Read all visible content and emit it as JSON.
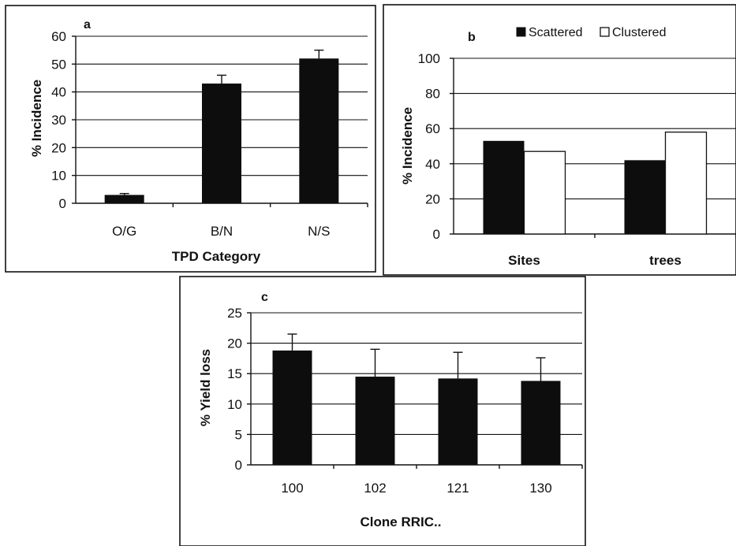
{
  "chart_data": [
    {
      "panel": "a",
      "type": "bar",
      "title": "",
      "xlabel": "TPD Category",
      "ylabel": "% Incidence",
      "ylim": [
        0,
        60
      ],
      "yticks": [
        0,
        10,
        20,
        30,
        40,
        50,
        60
      ],
      "categories": [
        "O/G",
        "B/N",
        "N/S"
      ],
      "values": [
        3,
        43,
        52
      ],
      "errors": [
        0.5,
        3,
        3
      ],
      "grid": true,
      "colors": {
        "bar": "#0d0d0d"
      }
    },
    {
      "panel": "b",
      "type": "bar",
      "title": "",
      "xlabel": "",
      "ylabel": "% Incidence",
      "ylim": [
        0,
        100
      ],
      "yticks": [
        0,
        20,
        40,
        60,
        80,
        100
      ],
      "categories": [
        "Sites",
        "trees"
      ],
      "series": [
        {
          "name": "Scattered",
          "values": [
            53,
            42
          ],
          "color": "#0d0d0d"
        },
        {
          "name": "Clustered",
          "values": [
            47,
            58
          ],
          "color": "#ffffff"
        }
      ],
      "legend": "top",
      "grid": true
    },
    {
      "panel": "c",
      "type": "bar",
      "title": "",
      "xlabel": "Clone RRIC..",
      "ylabel": "% Yield loss",
      "ylim": [
        0,
        25
      ],
      "yticks": [
        0,
        5,
        10,
        15,
        20,
        25
      ],
      "categories": [
        "100",
        "102",
        "121",
        "130"
      ],
      "values": [
        18.8,
        14.5,
        14.2,
        13.8
      ],
      "errors": [
        2.7,
        4.5,
        4.3,
        3.8
      ],
      "grid": true,
      "colors": {
        "bar": "#0d0d0d"
      }
    }
  ]
}
